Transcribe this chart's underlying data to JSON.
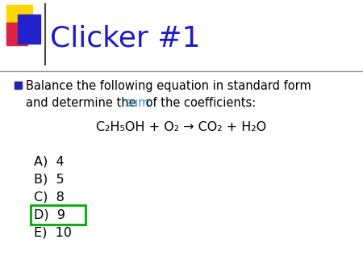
{
  "title": "Clicker #1",
  "title_color": "#1A1ACC",
  "title_fontsize": 26,
  "bg_color": "#FFFFFF",
  "bullet_text_line1": "Balance the following equation in standard form",
  "bullet_text_line2a": "and determine the ",
  "bullet_text_sum": "sum",
  "bullet_text_line2b": " of the coefficients:",
  "sum_color": "#3399CC",
  "equation": "C₂H₅OH + O₂ → CO₂ + H₂O",
  "options": [
    "A)  4",
    "B)  5",
    "C)  8",
    "D)  9",
    "E)  10"
  ],
  "answer_index": 3,
  "answer_box_color": "#00AA00",
  "text_color": "#000000",
  "body_fontsize": 10.5,
  "eq_fontsize": 11.5,
  "option_fontsize": 11.5,
  "divider_color": "#999999",
  "yellow_color": "#FFD700",
  "red_color": "#DD2244",
  "blue_color": "#2222CC",
  "bullet_color": "#2222AA"
}
